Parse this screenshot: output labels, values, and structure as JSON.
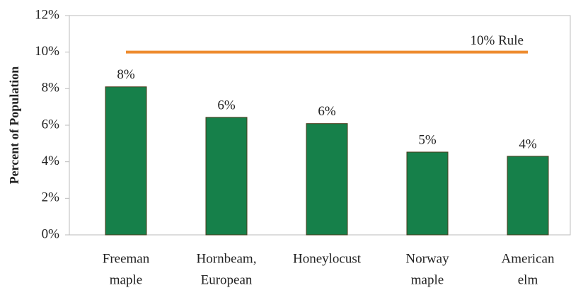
{
  "chart_data": {
    "type": "bar",
    "y_label": "Percent of Population",
    "categories": [
      [
        "Freeman",
        "maple"
      ],
      [
        "Hornbeam,",
        "European"
      ],
      [
        "Honeylocust"
      ],
      [
        "Norway",
        "maple"
      ],
      [
        "American",
        "elm"
      ]
    ],
    "values": [
      8.1,
      6.43,
      6.09,
      4.53,
      4.3
    ],
    "value_labels": [
      "8%",
      "6%",
      "6%",
      "5%",
      "4%"
    ],
    "color": "#16804a",
    "ylim": [
      0,
      12
    ],
    "yticks": [
      {
        "value": 0,
        "label": "0%"
      },
      {
        "value": 2,
        "label": "2%"
      },
      {
        "value": 4,
        "label": "4%"
      },
      {
        "value": 6,
        "label": "6%"
      },
      {
        "value": 8,
        "label": "8%"
      },
      {
        "value": 10,
        "label": "10%"
      },
      {
        "value": 12,
        "label": "12%"
      }
    ],
    "threshold": {
      "text": "10% Rule",
      "value": 10,
      "color": "#ee8c30"
    }
  }
}
